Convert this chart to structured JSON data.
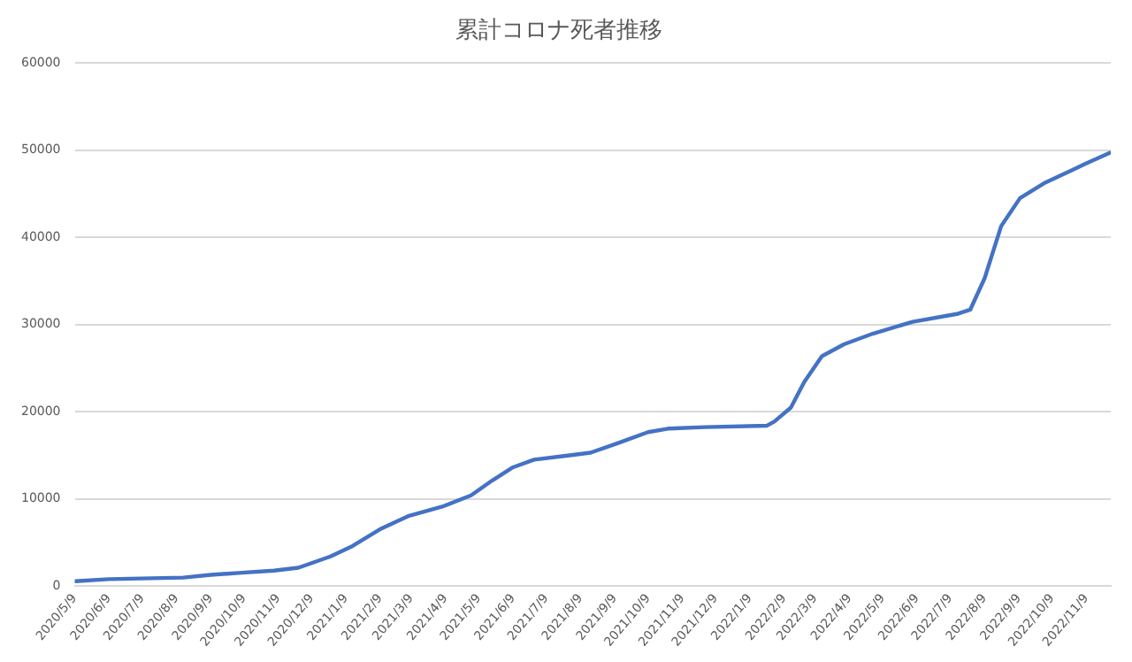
{
  "chart_data": {
    "type": "line",
    "title": "累計コロナ死者推移",
    "x": [
      "2020-05-09",
      "2020-06-09",
      "2020-08-15",
      "2020-09-09",
      "2020-10-07",
      "2020-11-05",
      "2020-11-27",
      "2020-12-26",
      "2021-01-15",
      "2021-02-10",
      "2021-03-07",
      "2021-04-06",
      "2021-05-02",
      "2021-05-21",
      "2021-06-09",
      "2021-06-28",
      "2021-07-30",
      "2021-08-18",
      "2021-09-13",
      "2021-10-09",
      "2021-10-27",
      "2021-11-29",
      "2022-01-24",
      "2022-01-31",
      "2022-02-15",
      "2022-02-27",
      "2022-03-15",
      "2022-04-04",
      "2022-04-30",
      "2022-06-05",
      "2022-07-15",
      "2022-07-27",
      "2022-08-09",
      "2022-08-24",
      "2022-09-10",
      "2022-10-03",
      "2022-10-27",
      "2022-11-09",
      "2022-11-30"
    ],
    "series": [
      {
        "color": "#4472c4",
        "values": [
          560,
          800,
          970,
          1290,
          1530,
          1770,
          2100,
          3400,
          4600,
          6600,
          8060,
          9110,
          10400,
          12100,
          13630,
          14500,
          15000,
          15300,
          16450,
          17660,
          18060,
          18230,
          18390,
          18870,
          20480,
          23390,
          26370,
          27740,
          28950,
          30320,
          31210,
          31700,
          35300,
          41300,
          44500,
          46300,
          47700,
          48500,
          49700
        ]
      }
    ],
    "xlim": [
      "2020-05-09",
      "2022-12-01"
    ],
    "xticks": [
      {
        "value": "2020-05-09",
        "label": "2020/5/9"
      },
      {
        "value": "2020-06-09",
        "label": "2020/6/9"
      },
      {
        "value": "2020-07-09",
        "label": "2020/7/9"
      },
      {
        "value": "2020-08-09",
        "label": "2020/8/9"
      },
      {
        "value": "2020-09-09",
        "label": "2020/9/9"
      },
      {
        "value": "2020-10-09",
        "label": "2020/10/9"
      },
      {
        "value": "2020-11-09",
        "label": "2020/11/9"
      },
      {
        "value": "2020-12-09",
        "label": "2020/12/9"
      },
      {
        "value": "2021-01-09",
        "label": "2021/1/9"
      },
      {
        "value": "2021-02-09",
        "label": "2021/2/9"
      },
      {
        "value": "2021-03-09",
        "label": "2021/3/9"
      },
      {
        "value": "2021-04-09",
        "label": "2021/4/9"
      },
      {
        "value": "2021-05-09",
        "label": "2021/5/9"
      },
      {
        "value": "2021-06-09",
        "label": "2021/6/9"
      },
      {
        "value": "2021-07-09",
        "label": "2021/7/9"
      },
      {
        "value": "2021-08-09",
        "label": "2021/8/9"
      },
      {
        "value": "2021-09-09",
        "label": "2021/9/9"
      },
      {
        "value": "2021-10-09",
        "label": "2021/10/9"
      },
      {
        "value": "2021-11-09",
        "label": "2021/11/9"
      },
      {
        "value": "2021-12-09",
        "label": "2021/12/9"
      },
      {
        "value": "2022-01-09",
        "label": "2022/1/9"
      },
      {
        "value": "2022-02-09",
        "label": "2022/2/9"
      },
      {
        "value": "2022-03-09",
        "label": "2022/3/9"
      },
      {
        "value": "2022-04-09",
        "label": "2022/4/9"
      },
      {
        "value": "2022-05-09",
        "label": "2022/5/9"
      },
      {
        "value": "2022-06-09",
        "label": "2022/6/9"
      },
      {
        "value": "2022-07-09",
        "label": "2022/7/9"
      },
      {
        "value": "2022-08-09",
        "label": "2022/8/9"
      },
      {
        "value": "2022-09-09",
        "label": "2022/9/9"
      },
      {
        "value": "2022-10-09",
        "label": "2022/10/9"
      },
      {
        "value": "2022-11-09",
        "label": "2022/11/9"
      }
    ],
    "ylim": [
      0,
      60000
    ],
    "yticks": [
      0,
      10000,
      20000,
      30000,
      40000,
      50000,
      60000
    ],
    "grid": "y",
    "legend": false,
    "marker": "none",
    "line_style": "solid"
  }
}
